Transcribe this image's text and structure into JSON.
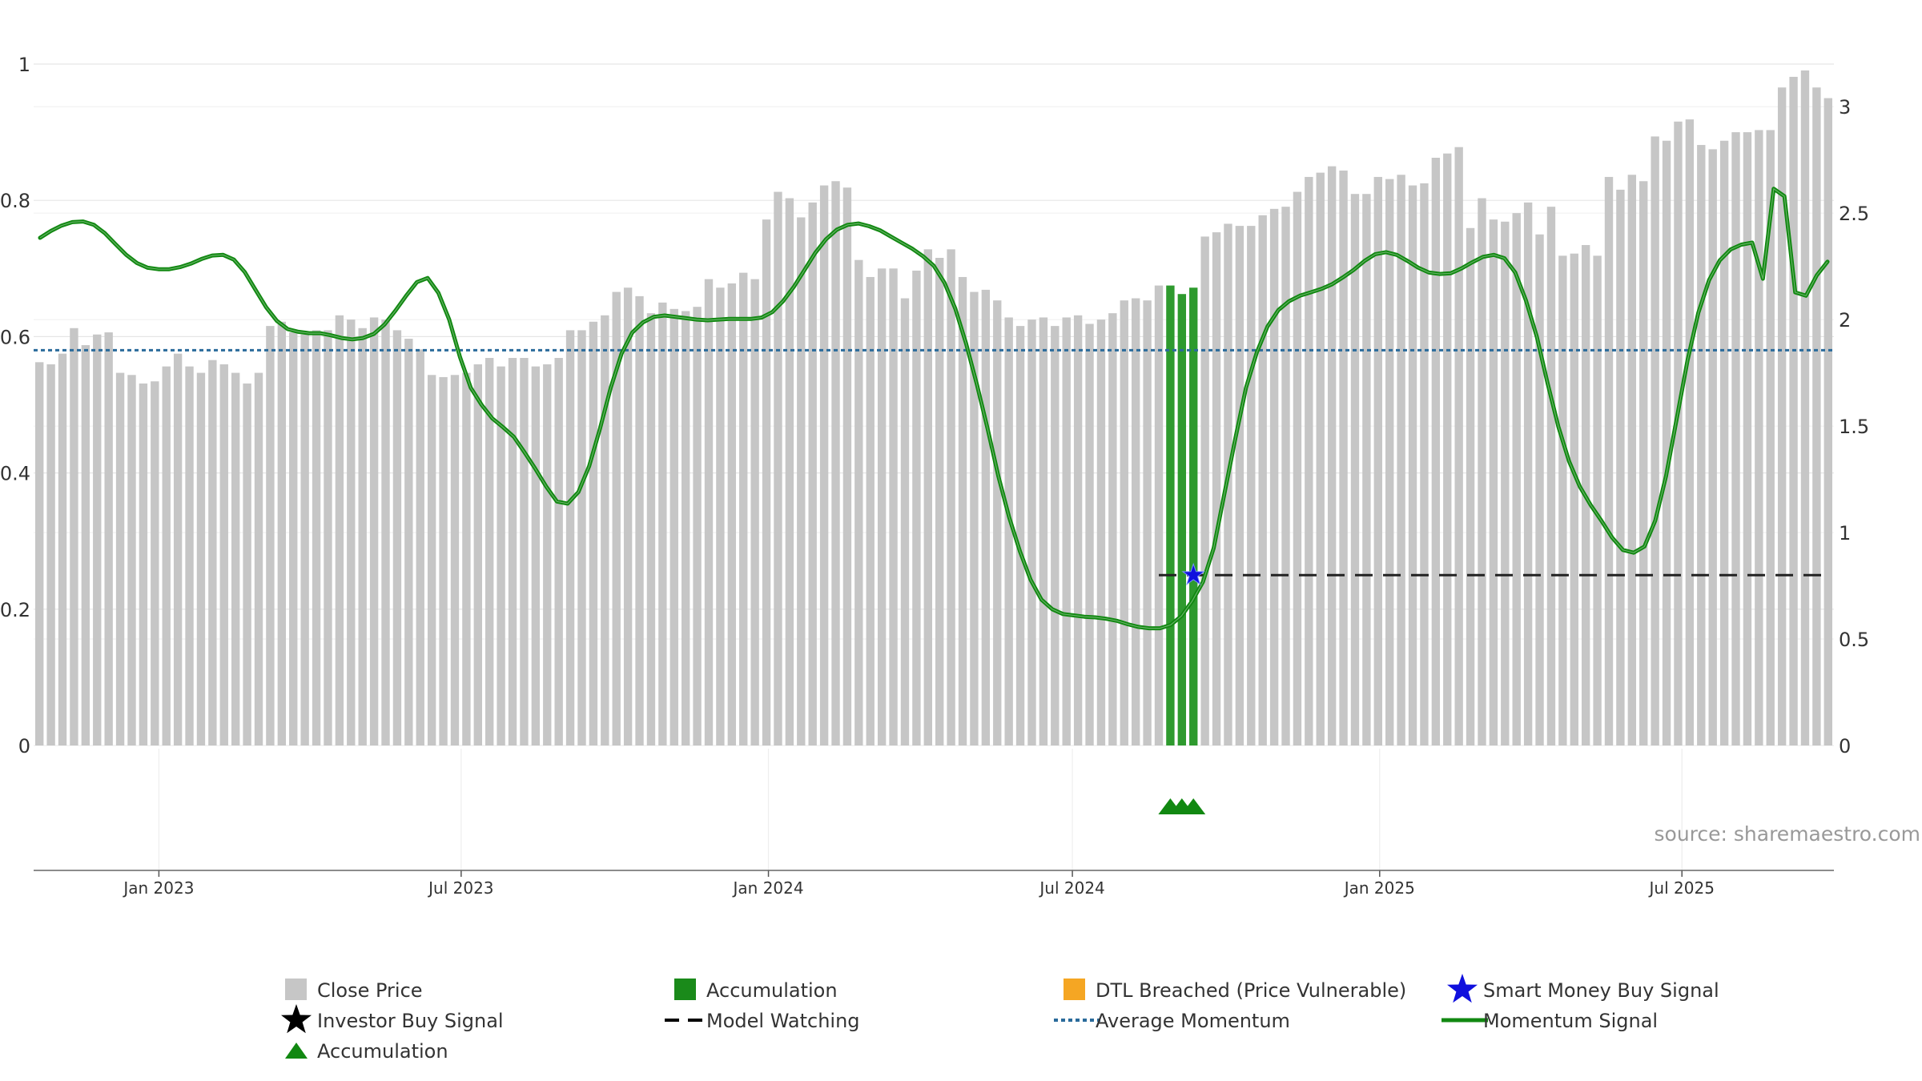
{
  "chart_data": {
    "type": "bar",
    "left_axis": {
      "range": [
        0,
        1
      ],
      "ticks": [
        "0",
        "0.2",
        "0.4",
        "0.6",
        "0.8",
        "1"
      ]
    },
    "right_axis": {
      "range": [
        0,
        3.2
      ],
      "ticks": [
        "0",
        "0.5",
        "1",
        "1.5",
        "2",
        "2.5",
        "3"
      ]
    },
    "x_ticks": [
      "Jan 2023",
      "Jul 2023",
      "Jan 2024",
      "Jul 2024",
      "Jan 2025",
      "Jul 2025"
    ],
    "x_tick_dates": [
      "2023-01-01",
      "2023-07-01",
      "2024-01-01",
      "2024-07-01",
      "2025-01-01",
      "2025-07-01"
    ],
    "grid": true,
    "source_note": "source: sharemaestro.com",
    "colors": {
      "close": "#c6c6c6",
      "accumulation": "#2e9a2e",
      "momentum": "#118811",
      "average": "#2a6b9b",
      "watching": "#222222",
      "smart_money": "#1010dd",
      "dtl": "#f5a623"
    },
    "close_price": [
      1.8,
      1.79,
      1.84,
      1.96,
      1.88,
      1.93,
      1.94,
      1.75,
      1.74,
      1.7,
      1.71,
      1.78,
      1.84,
      1.78,
      1.75,
      1.81,
      1.79,
      1.75,
      1.7,
      1.75,
      1.97,
      1.99,
      1.94,
      1.93,
      1.95,
      1.95,
      2.02,
      2.0,
      1.96,
      2.01,
      2.0,
      1.95,
      1.91,
      1.86,
      1.74,
      1.73,
      1.74,
      1.75,
      1.79,
      1.82,
      1.78,
      1.82,
      1.82,
      1.78,
      1.79,
      1.82,
      1.95,
      1.95,
      1.99,
      2.02,
      2.13,
      2.15,
      2.11,
      2.03,
      2.08,
      2.05,
      2.04,
      2.06,
      2.19,
      2.15,
      2.17,
      2.22,
      2.19,
      2.47,
      2.6,
      2.57,
      2.48,
      2.55,
      2.63,
      2.65,
      2.62,
      2.28,
      2.2,
      2.24,
      2.24,
      2.1,
      2.23,
      2.33,
      2.29,
      2.33,
      2.2,
      2.13,
      2.14,
      2.09,
      2.01,
      1.97,
      2.0,
      2.01,
      1.97,
      2.01,
      2.02,
      1.98,
      2.0,
      2.03,
      2.09,
      2.1,
      2.09,
      2.16,
      2.16,
      2.12,
      2.15,
      2.39,
      2.41,
      2.45,
      2.44,
      2.44,
      2.49,
      2.52,
      2.53,
      2.6,
      2.67,
      2.69,
      2.72,
      2.7,
      2.59,
      2.59,
      2.67,
      2.66,
      2.68,
      2.63,
      2.64,
      2.76,
      2.78,
      2.81,
      2.43,
      2.57,
      2.47,
      2.46,
      2.5,
      2.55,
      2.4,
      2.53,
      2.3,
      2.31,
      2.35,
      2.3,
      2.67,
      2.61,
      2.68,
      2.65,
      2.86,
      2.84,
      2.93,
      2.94,
      2.82,
      2.8,
      2.84,
      2.88,
      2.88,
      2.89,
      2.89,
      3.09,
      3.14,
      3.17,
      3.09,
      3.04
    ],
    "accumulation_bars": [
      98,
      99,
      100
    ],
    "accumulation_markers": [
      98,
      99,
      100
    ],
    "momentum": [
      0.745,
      0.755,
      0.763,
      0.768,
      0.769,
      0.764,
      0.752,
      0.736,
      0.72,
      0.708,
      0.701,
      0.699,
      0.699,
      0.702,
      0.707,
      0.714,
      0.719,
      0.72,
      0.713,
      0.695,
      0.669,
      0.643,
      0.623,
      0.611,
      0.607,
      0.605,
      0.605,
      0.602,
      0.598,
      0.596,
      0.598,
      0.604,
      0.618,
      0.638,
      0.66,
      0.68,
      0.686,
      0.664,
      0.625,
      0.57,
      0.525,
      0.5,
      0.48,
      0.467,
      0.453,
      0.43,
      0.406,
      0.38,
      0.358,
      0.355,
      0.372,
      0.41,
      0.465,
      0.525,
      0.575,
      0.606,
      0.621,
      0.629,
      0.631,
      0.629,
      0.627,
      0.625,
      0.624,
      0.625,
      0.626,
      0.626,
      0.626,
      0.628,
      0.636,
      0.652,
      0.673,
      0.698,
      0.723,
      0.743,
      0.757,
      0.764,
      0.766,
      0.762,
      0.756,
      0.747,
      0.738,
      0.729,
      0.718,
      0.704,
      0.679,
      0.641,
      0.59,
      0.53,
      0.465,
      0.395,
      0.335,
      0.285,
      0.243,
      0.214,
      0.2,
      0.193,
      0.191,
      0.189,
      0.188,
      0.186,
      0.183,
      0.178,
      0.174,
      0.172,
      0.172,
      0.177,
      0.19,
      0.212,
      0.24,
      0.29,
      0.37,
      0.45,
      0.525,
      0.577,
      0.615,
      0.639,
      0.652,
      0.66,
      0.665,
      0.67,
      0.677,
      0.687,
      0.698,
      0.711,
      0.721,
      0.724,
      0.72,
      0.711,
      0.701,
      0.694,
      0.692,
      0.693,
      0.7,
      0.709,
      0.717,
      0.72,
      0.715,
      0.694,
      0.653,
      0.6,
      0.532,
      0.468,
      0.417,
      0.38,
      0.353,
      0.33,
      0.305,
      0.287,
      0.283,
      0.292,
      0.33,
      0.395,
      0.48,
      0.565,
      0.635,
      0.683,
      0.712,
      0.728,
      0.735,
      0.738,
      0.685,
      0.817,
      0.806,
      0.665,
      0.66,
      0.69,
      0.71
    ],
    "average_momentum": 0.58,
    "model_watching_level": 0.25,
    "model_watching_start": 100,
    "smart_money_signals": [
      {
        "index": 101,
        "value": 0.25
      }
    ],
    "legend": [
      {
        "label": "Close Price",
        "marker": "square",
        "color": "#c6c6c6"
      },
      {
        "label": "Accumulation",
        "marker": "square",
        "color": "#1a8a1a"
      },
      {
        "label": "DTL Breached (Price Vulnerable)",
        "marker": "square",
        "color": "#f5a623"
      },
      {
        "label": "Smart Money Buy Signal",
        "marker": "star",
        "color": "#1010dd"
      },
      {
        "label": "Investor Buy Signal",
        "marker": "star",
        "color": "#000000"
      },
      {
        "label": "Model Watching",
        "marker": "dash",
        "color": "#000000"
      },
      {
        "label": "Average Momentum",
        "marker": "dotted",
        "color": "#2a6b9b"
      },
      {
        "label": "Momentum Signal",
        "marker": "line",
        "color": "#118811"
      },
      {
        "label": "Accumulation",
        "marker": "triangle",
        "color": "#118811"
      }
    ]
  }
}
